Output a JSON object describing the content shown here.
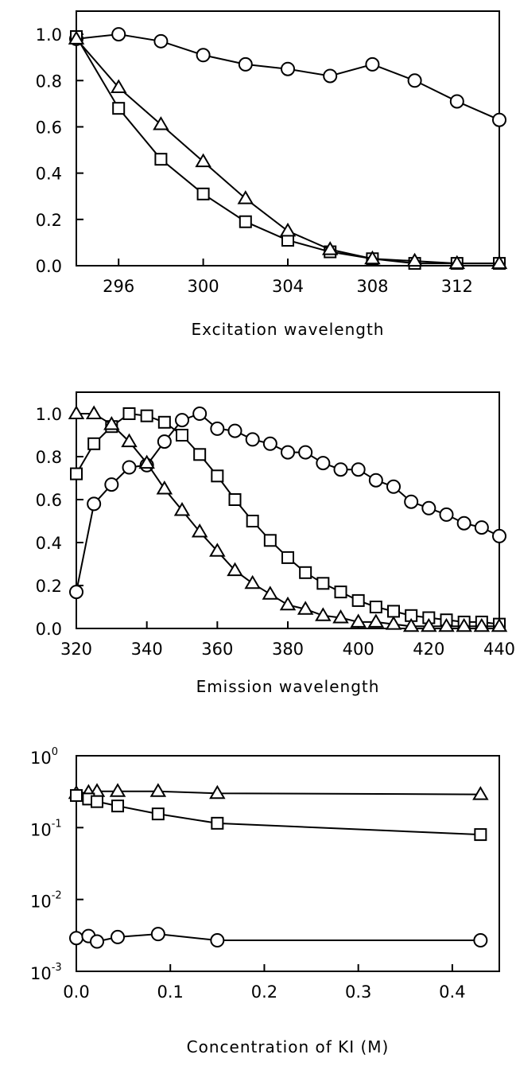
{
  "chart_data": [
    {
      "type": "line",
      "xlabel": "Excitation wavelength",
      "ylabel": "",
      "xlim": [
        294,
        314
      ],
      "ylim": [
        0,
        1.1
      ],
      "xticks": [
        296,
        300,
        304,
        308,
        312
      ],
      "yticks": [
        0.0,
        0.2,
        0.4,
        0.6,
        0.8,
        1.0
      ],
      "ytick_labels": [
        "0.0",
        "0.2",
        "0.4",
        "0.6",
        "0.8",
        "1.0"
      ],
      "grid": false,
      "series": [
        {
          "marker": "circle",
          "x": [
            294,
            296,
            298,
            300,
            302,
            304,
            306,
            308,
            310,
            312,
            314
          ],
          "values": [
            0.98,
            1.0,
            0.97,
            0.91,
            0.87,
            0.85,
            0.82,
            0.87,
            0.8,
            0.71,
            0.63
          ]
        },
        {
          "marker": "square",
          "x": [
            294,
            296,
            298,
            300,
            302,
            304,
            306,
            308,
            310,
            312,
            314
          ],
          "values": [
            0.99,
            0.68,
            0.46,
            0.31,
            0.19,
            0.11,
            0.06,
            0.03,
            0.01,
            0.01,
            0.01
          ]
        },
        {
          "marker": "triangle",
          "x": [
            294,
            296,
            298,
            300,
            302,
            304,
            306,
            308,
            310,
            312,
            314
          ],
          "values": [
            0.98,
            0.77,
            0.61,
            0.45,
            0.29,
            0.15,
            0.07,
            0.03,
            0.02,
            0.01,
            0.01
          ]
        }
      ]
    },
    {
      "type": "line",
      "xlabel": "Emission wavelength",
      "ylabel": "",
      "xlim": [
        320,
        440
      ],
      "ylim": [
        0,
        1.1
      ],
      "xticks": [
        320,
        340,
        360,
        380,
        400,
        420,
        440
      ],
      "yticks": [
        0.0,
        0.2,
        0.4,
        0.6,
        0.8,
        1.0
      ],
      "ytick_labels": [
        "0.0",
        "0.2",
        "0.4",
        "0.6",
        "0.8",
        "1.0"
      ],
      "grid": false,
      "series": [
        {
          "marker": "circle",
          "x": [
            320,
            325,
            330,
            335,
            340,
            345,
            350,
            355,
            360,
            365,
            370,
            375,
            380,
            385,
            390,
            395,
            400,
            405,
            410,
            415,
            420,
            425,
            430,
            435,
            440
          ],
          "values": [
            0.17,
            0.58,
            0.67,
            0.75,
            0.76,
            0.87,
            0.97,
            1.0,
            0.93,
            0.92,
            0.88,
            0.86,
            0.82,
            0.82,
            0.77,
            0.74,
            0.74,
            0.69,
            0.66,
            0.59,
            0.56,
            0.53,
            0.49,
            0.47,
            0.43
          ]
        },
        {
          "marker": "square",
          "x": [
            320,
            325,
            330,
            335,
            340,
            345,
            350,
            355,
            360,
            365,
            370,
            375,
            380,
            385,
            390,
            395,
            400,
            405,
            410,
            415,
            420,
            425,
            430,
            435,
            440
          ],
          "values": [
            0.72,
            0.86,
            0.94,
            1.0,
            0.99,
            0.96,
            0.9,
            0.81,
            0.71,
            0.6,
            0.5,
            0.41,
            0.33,
            0.26,
            0.21,
            0.17,
            0.13,
            0.1,
            0.08,
            0.06,
            0.05,
            0.04,
            0.03,
            0.03,
            0.02
          ]
        },
        {
          "marker": "triangle",
          "x": [
            320,
            325,
            330,
            335,
            340,
            345,
            350,
            355,
            360,
            365,
            370,
            375,
            380,
            385,
            390,
            395,
            400,
            405,
            410,
            415,
            420,
            425,
            430,
            435,
            440
          ],
          "values": [
            1.0,
            1.0,
            0.95,
            0.87,
            0.77,
            0.65,
            0.55,
            0.45,
            0.36,
            0.27,
            0.21,
            0.16,
            0.11,
            0.09,
            0.06,
            0.05,
            0.03,
            0.03,
            0.02,
            0.01,
            0.01,
            0.01,
            0.01,
            0.01,
            0.01
          ]
        }
      ]
    },
    {
      "type": "line",
      "xlabel": "Concentration of KI (M)",
      "ylabel": "",
      "xlim": [
        0,
        0.45
      ],
      "ylim": [
        0.001,
        1
      ],
      "yscale": "log",
      "xticks": [
        0.0,
        0.1,
        0.2,
        0.3,
        0.4
      ],
      "xtick_labels": [
        "0.0",
        "0.1",
        "0.2",
        "0.3",
        "0.4"
      ],
      "yticks": [
        0.001,
        0.01,
        0.1,
        1
      ],
      "ytick_base": "10",
      "ytick_exponents": [
        "-3",
        "-2",
        "-1",
        "0"
      ],
      "grid": false,
      "series": [
        {
          "marker": "triangle",
          "x": [
            0,
            0.013,
            0.022,
            0.044,
            0.087,
            0.15,
            0.43
          ],
          "values": [
            0.3,
            0.31,
            0.32,
            0.32,
            0.32,
            0.3,
            0.29
          ]
        },
        {
          "marker": "square",
          "x": [
            0,
            0.013,
            0.022,
            0.044,
            0.087,
            0.15,
            0.43
          ],
          "values": [
            0.28,
            0.25,
            0.23,
            0.2,
            0.155,
            0.115,
            0.08
          ]
        },
        {
          "marker": "circle",
          "x": [
            0,
            0.013,
            0.022,
            0.044,
            0.087,
            0.15,
            0.43
          ],
          "values": [
            0.0029,
            0.0031,
            0.0026,
            0.003,
            0.0033,
            0.0027,
            0.0027
          ]
        }
      ]
    }
  ]
}
